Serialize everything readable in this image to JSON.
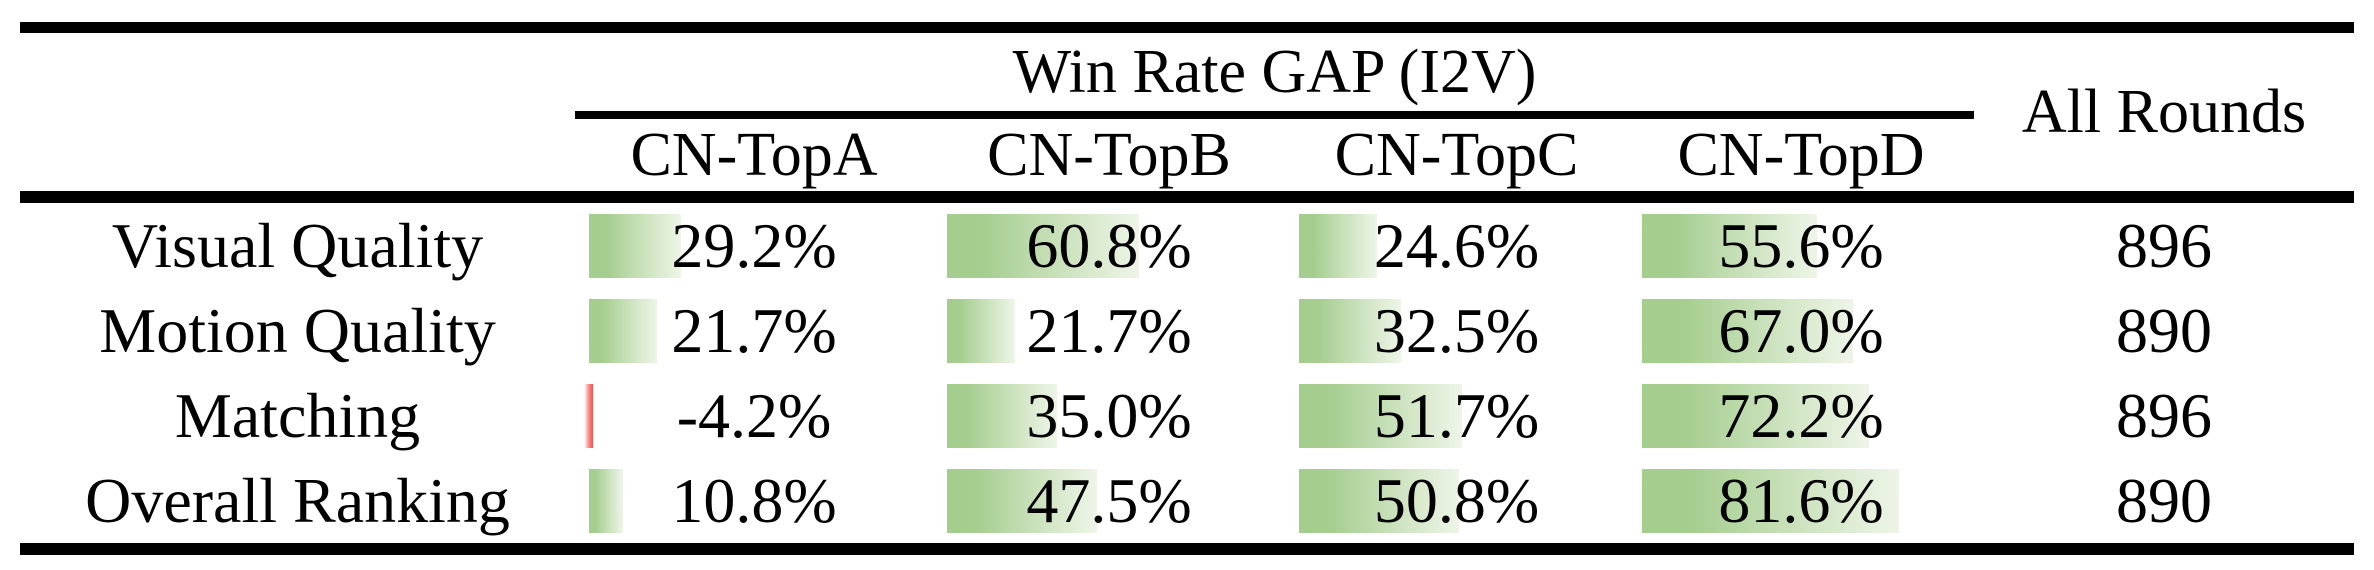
{
  "table": {
    "title": "Win Rate GAP (I2V)",
    "all_rounds_header": "All Rounds",
    "columns": [
      "CN-TopA",
      "CN-TopB",
      "CN-TopC",
      "CN-TopD"
    ],
    "rows": [
      {
        "label": "Visual Quality",
        "cells": [
          {
            "pct": 29.2,
            "text": "29.2%"
          },
          {
            "pct": 60.8,
            "text": "60.8%"
          },
          {
            "pct": 24.6,
            "text": "24.6%"
          },
          {
            "pct": 55.6,
            "text": "55.6%"
          }
        ],
        "all_rounds": "896"
      },
      {
        "label": "Motion Quality",
        "cells": [
          {
            "pct": 21.7,
            "text": "21.7%"
          },
          {
            "pct": 21.7,
            "text": "21.7%"
          },
          {
            "pct": 32.5,
            "text": "32.5%"
          },
          {
            "pct": 67.0,
            "text": "67.0%"
          }
        ],
        "all_rounds": "890"
      },
      {
        "label": "Matching",
        "cells": [
          {
            "pct": -4.2,
            "text": "-4.2%"
          },
          {
            "pct": 35.0,
            "text": "35.0%"
          },
          {
            "pct": 51.7,
            "text": "51.7%"
          },
          {
            "pct": 72.2,
            "text": "72.2%"
          }
        ],
        "all_rounds": "896"
      },
      {
        "label": "Overall Ranking",
        "cells": [
          {
            "pct": 10.8,
            "text": "10.8%"
          },
          {
            "pct": 47.5,
            "text": "47.5%"
          },
          {
            "pct": 50.8,
            "text": "50.8%"
          },
          {
            "pct": 81.6,
            "text": "81.6%"
          }
        ],
        "all_rounds": "890"
      }
    ]
  },
  "colors": {
    "bar_green": "#a4cd8e",
    "bar_green_fade": "#eef5e8",
    "bar_negative": "#f2504d",
    "rule_black": "#000000"
  },
  "chart_data": {
    "type": "table",
    "title": "Win Rate GAP (I2V)",
    "row_header": [
      "Visual Quality",
      "Motion Quality",
      "Matching",
      "Overall Ranking"
    ],
    "categories": [
      "CN-TopA",
      "CN-TopB",
      "CN-TopC",
      "CN-TopD"
    ],
    "series": [
      {
        "name": "Visual Quality",
        "values": [
          29.2,
          60.8,
          24.6,
          55.6
        ],
        "all_rounds": 896
      },
      {
        "name": "Motion Quality",
        "values": [
          21.7,
          21.7,
          32.5,
          67.0
        ],
        "all_rounds": 890
      },
      {
        "name": "Matching",
        "values": [
          -4.2,
          35.0,
          51.7,
          72.2
        ],
        "all_rounds": 896
      },
      {
        "name": "Overall Ranking",
        "values": [
          10.8,
          47.5,
          50.8,
          81.6
        ],
        "all_rounds": 890
      }
    ],
    "extra_column": {
      "label": "All Rounds",
      "values": [
        896,
        890,
        896,
        890
      ]
    },
    "units": "percent",
    "bar_scale_max": 100,
    "layout": "in-cell gradient data bars, positive green / negative red"
  }
}
